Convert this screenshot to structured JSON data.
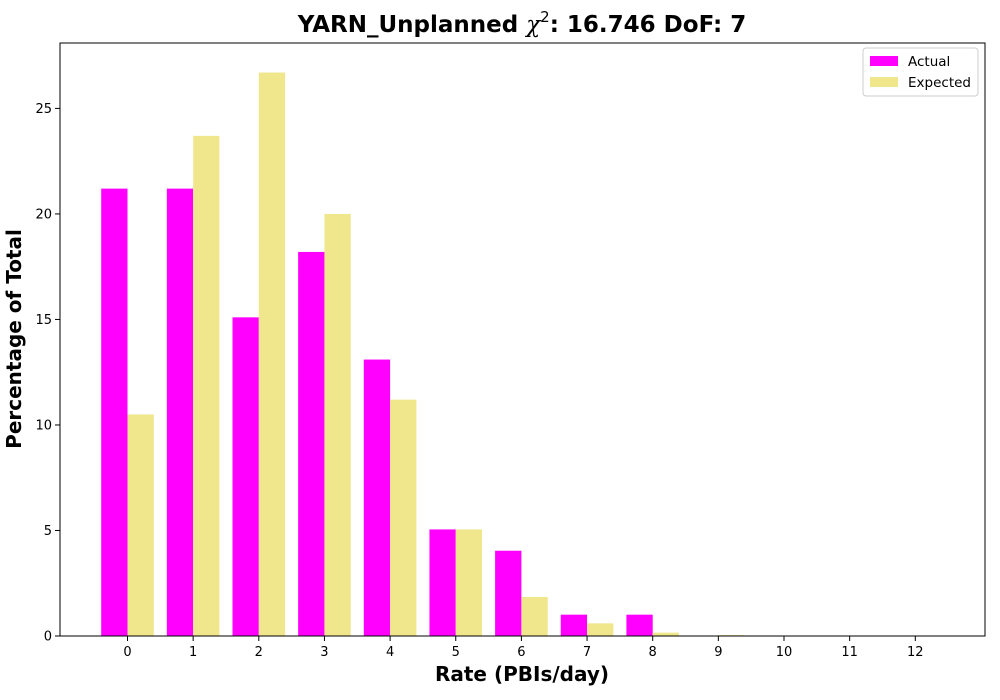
{
  "chart_data": {
    "type": "bar",
    "title": {
      "prefix": "YARN_Unplanned ",
      "chi_symbol": "χ",
      "chi_exponent": "2",
      "suffix": ": 16.746 DoF: 7"
    },
    "xlabel": "Rate (PBIs/day)",
    "ylabel": "Percentage of Total",
    "categories": [
      "0",
      "1",
      "2",
      "3",
      "4",
      "5",
      "6",
      "7",
      "8",
      "9",
      "10",
      "11",
      "12"
    ],
    "yticks": [
      "0",
      "5",
      "10",
      "15",
      "20",
      "25"
    ],
    "ylim": [
      0,
      28.1
    ],
    "series": [
      {
        "name": "Actual",
        "color": "#ff00ff",
        "values": [
          21.2,
          21.2,
          15.1,
          18.2,
          13.1,
          5.05,
          4.04,
          1.01,
          1.01,
          0,
          0,
          0,
          0
        ]
      },
      {
        "name": "Expected",
        "color": "#f0e68c",
        "values": [
          10.5,
          23.7,
          26.7,
          20.0,
          11.2,
          5.05,
          1.85,
          0.6,
          0.16,
          0.04,
          0.01,
          0.0,
          0.0
        ]
      }
    ],
    "legend_position": "top-right",
    "grid": false
  }
}
